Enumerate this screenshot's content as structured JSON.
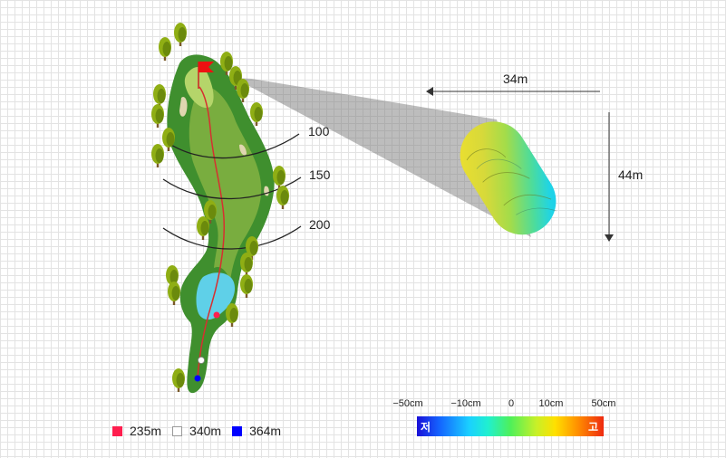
{
  "distance_markers": [
    {
      "label": "100"
    },
    {
      "label": "150"
    },
    {
      "label": "200"
    }
  ],
  "green_dimensions": {
    "width_label": "34m",
    "depth_label": "44m"
  },
  "tee_legend": [
    {
      "label": "235m",
      "color": "#ff1e4e"
    },
    {
      "label": "340m",
      "color": "#ffffff"
    },
    {
      "label": "364m",
      "color": "#0000ff"
    }
  ],
  "elevation_scale": {
    "ticks": [
      "−50cm",
      "−10cm",
      "0",
      "10cm",
      "50cm"
    ],
    "low_label": "저",
    "high_label": "고"
  },
  "colors": {
    "rough": "#3f8f2e",
    "fairway": "#79ad3f",
    "green": "#b5d56a",
    "water": "#5fd0e8",
    "flag": "#ee1111"
  }
}
